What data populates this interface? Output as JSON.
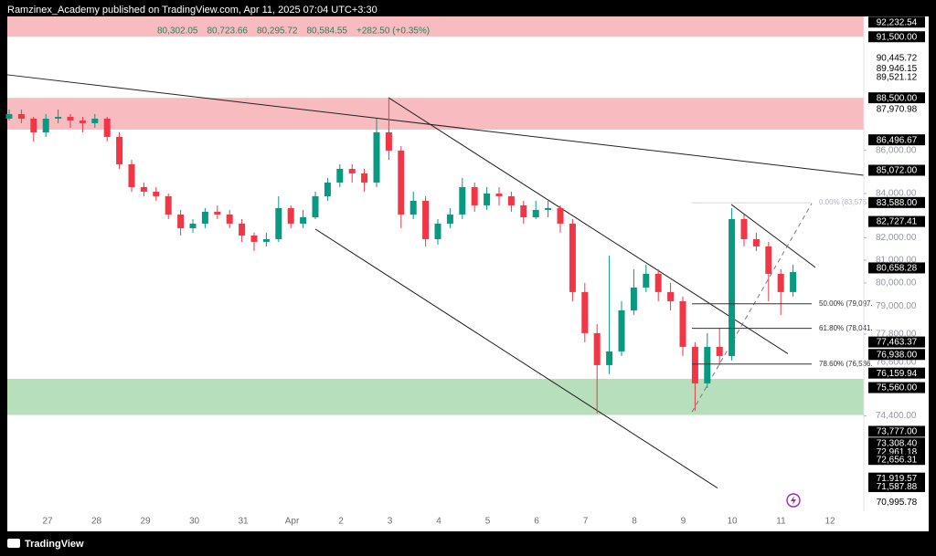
{
  "header": {
    "text": "Ramzinex_Academy published on TradingView.com, Apr 11, 2025 07:04 UTC+3:30"
  },
  "legend": {
    "values": [
      "80,302.05",
      "80,723.66",
      "80,295.72",
      "80,584.55",
      "+282.50 (+0.35%)"
    ]
  },
  "chart_data": {
    "type": "candlestick",
    "log_scale": true,
    "up_color": "#089981",
    "down_color": "#f23645",
    "ylim": [
      70630,
      92520
    ],
    "yticks": [
      {
        "value": 86000,
        "label": "86,000.00"
      },
      {
        "value": 84000,
        "label": "84,000.00"
      },
      {
        "value": 82000,
        "label": "82,000.00"
      },
      {
        "value": 81000,
        "label": "81,000.00"
      },
      {
        "value": 80000,
        "label": "80,000.00"
      },
      {
        "value": 79000,
        "label": "79,000.00"
      },
      {
        "value": 77800,
        "label": "77,800.00"
      },
      {
        "value": 76600,
        "label": "76,600.00"
      },
      {
        "value": 74400,
        "label": "74,400.00"
      }
    ],
    "x_labels": [
      "27",
      "28",
      "29",
      "30",
      "31",
      "Apr",
      "2",
      "3",
      "4",
      "5",
      "6",
      "7",
      "8",
      "9",
      "10",
      "11",
      "12"
    ],
    "open": [
      87501,
      87720,
      87501,
      86850,
      87501,
      87588,
      87414,
      87284,
      87501,
      86634,
      85350,
      84293,
      84084,
      83875,
      83043,
      82426,
      82631,
      83168,
      83043,
      82631,
      82097,
      81813,
      81934,
      83333,
      82631,
      82919,
      83875,
      84504,
      85137,
      84926,
      84504,
      86850,
      85990,
      83043,
      83666,
      81934,
      82631,
      83043,
      84293,
      83458,
      84000,
      83875,
      83458,
      82919,
      83251,
      83333,
      82631,
      79602,
      77838,
      76492,
      77066,
      78812,
      79800,
      80398,
      79602,
      79206,
      77258,
      75734,
      77258,
      76874,
      82837,
      81934,
      81609,
      80398,
      79602
    ],
    "high": [
      87939,
      87939,
      87588,
      87720,
      87939,
      87720,
      87588,
      87720,
      87588,
      86850,
      85562,
      84504,
      84293,
      84000,
      83251,
      82837,
      83333,
      83458,
      83251,
      82837,
      82221,
      82221,
      83875,
      83458,
      83251,
      84084,
      84715,
      85350,
      85350,
      85137,
      87501,
      88509,
      86204,
      84084,
      83875,
      82837,
      83333,
      84715,
      84504,
      84293,
      84293,
      84084,
      83666,
      83666,
      83666,
      83458,
      82837,
      80000,
      78226,
      81204,
      79206,
      80599,
      80800,
      80599,
      80000,
      79404,
      77451,
      77838,
      78032,
      83333,
      83043,
      82221,
      81813,
      80599,
      80800
    ],
    "low": [
      87414,
      87284,
      86419,
      86634,
      87284,
      87067,
      86850,
      87067,
      86419,
      85137,
      84084,
      83875,
      83666,
      82837,
      82097,
      82221,
      82426,
      82837,
      82426,
      81813,
      81406,
      81609,
      81813,
      82426,
      82426,
      82837,
      83666,
      84293,
      84504,
      84084,
      84293,
      85562,
      82426,
      82837,
      81609,
      81690,
      82426,
      82837,
      83168,
      83251,
      83458,
      83168,
      82631,
      82837,
      82919,
      82221,
      79206,
      77451,
      74500,
      76112,
      76874,
      78616,
      79602,
      79206,
      78812,
      76874,
      74611,
      75545,
      76492,
      76683,
      81609,
      81406,
      79206,
      78616,
      79404
    ],
    "close": [
      87720,
      87501,
      86850,
      87501,
      87588,
      87414,
      87284,
      87501,
      86634,
      85350,
      84293,
      84084,
      83875,
      83043,
      82426,
      82631,
      83168,
      83043,
      82631,
      82097,
      81813,
      81934,
      83333,
      82631,
      82919,
      83875,
      84504,
      85137,
      84926,
      84504,
      86850,
      85990,
      83043,
      83666,
      81934,
      82631,
      83043,
      84293,
      83458,
      84000,
      83875,
      83458,
      82919,
      83251,
      83333,
      82631,
      79602,
      77838,
      76492,
      77066,
      78812,
      79800,
      80398,
      79602,
      79206,
      77258,
      75734,
      77258,
      76874,
      82837,
      81934,
      81609,
      80398,
      79602,
      80478
    ],
    "zones": [
      {
        "from": 91500,
        "to": 92520,
        "color": "#f8bcc0"
      },
      {
        "from": 86980,
        "to": 88500,
        "color": "#f8bcc0"
      },
      {
        "from": 74440,
        "to": 75923,
        "color": "#b7dfbb"
      }
    ],
    "lines": [
      {
        "from": 89620,
        "to": 84837,
        "style": "solid"
      },
      {
        "from": 88509,
        "to": 76970,
        "style": "solid"
      },
      {
        "from": 82386,
        "to": 71530,
        "style": "solid"
      },
      {
        "from": 83500,
        "to": 80680,
        "style": "solid"
      },
      {
        "from": 74560,
        "to": 83540,
        "style": "dashed"
      }
    ],
    "fib_levels": [
      {
        "value": 83575.9,
        "label": "0.00% (83,575.9"
      },
      {
        "value": 79097,
        "label": "50.00% (79,097."
      },
      {
        "value": 78041,
        "label": "61.80% (78,041."
      },
      {
        "value": 76536,
        "label": "78.60% (76,536."
      }
    ],
    "price_tags": [
      {
        "value": 92232.54,
        "label": "92,232.54",
        "dark": true
      },
      {
        "value": 91500,
        "label": "91,500.00",
        "dark": true
      },
      {
        "value": 90445.72,
        "label": "90,445.72",
        "dark": false
      },
      {
        "value": 89946.15,
        "label": "89,946.15",
        "dark": false
      },
      {
        "value": 89521.12,
        "label": "89,521.12",
        "dark": false
      },
      {
        "value": 88500,
        "label": "88,500.00",
        "dark": true
      },
      {
        "value": 87970.98,
        "label": "87,970.98",
        "dark": false
      },
      {
        "value": 86496.67,
        "label": "86,496.67",
        "dark": true
      },
      {
        "value": 85072,
        "label": "85,072.00",
        "dark": true
      },
      {
        "value": 83588,
        "label": "83,588.00",
        "dark": true
      },
      {
        "value": 82727.41,
        "label": "82,727.41",
        "dark": true
      },
      {
        "value": 80658.28,
        "label": "80,658.28",
        "dark": true
      },
      {
        "value": 77463.37,
        "label": "77,463.37",
        "dark": true
      },
      {
        "value": 76938,
        "label": "76,938.00",
        "dark": true
      },
      {
        "value": 76159.94,
        "label": "76,159.94",
        "dark": true
      },
      {
        "value": 75560,
        "label": "75,560.00",
        "dark": true
      },
      {
        "value": 73777,
        "label": "73,777.00",
        "dark": true
      },
      {
        "value": 73308.4,
        "label": "73,308.40",
        "dark": true
      },
      {
        "value": 72961.18,
        "label": "72,961.18",
        "dark": true
      },
      {
        "value": 72656.31,
        "label": "72,656.31",
        "dark": true
      },
      {
        "value": 71919.57,
        "label": "71,919.57",
        "dark": true
      },
      {
        "value": 71587.88,
        "label": "71,587.88",
        "dark": true
      },
      {
        "value": 70995.78,
        "label": "70,995.78",
        "dark": false
      }
    ]
  },
  "footer": {
    "brand": "TradingView"
  }
}
